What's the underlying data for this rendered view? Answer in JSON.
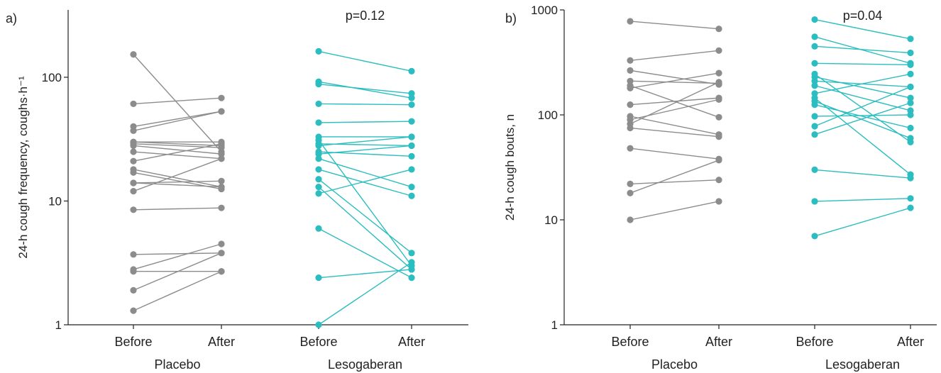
{
  "colors": {
    "placebo": "#8c8c8c",
    "lesogaberan": "#2bbdc0",
    "axis": "#222222"
  },
  "chart_data": [
    {
      "panel_label": "a)",
      "type": "line",
      "y_scale": "log",
      "ylabel": "24-h cough frequency, coughs·h⁻¹",
      "ylim": [
        1,
        350
      ],
      "yticks": [
        1,
        10,
        100
      ],
      "ytick_labels": [
        "1",
        "10",
        "100"
      ],
      "categories": [
        "Before",
        "After",
        "Before",
        "After"
      ],
      "groups": [
        {
          "name": "Placebo",
          "color": "placebo",
          "pairs": [
            [
              153,
              25
            ],
            [
              61,
              68
            ],
            [
              40,
              53
            ],
            [
              37,
              53
            ],
            [
              30,
              30
            ],
            [
              30,
              28
            ],
            [
              29,
              27
            ],
            [
              28,
              24
            ],
            [
              25,
              22
            ],
            [
              21,
              29
            ],
            [
              18,
              13
            ],
            [
              17,
              12.5
            ],
            [
              14,
              14.5
            ],
            [
              14,
              13
            ],
            [
              12,
              22
            ],
            [
              8.5,
              8.8
            ],
            [
              3.7,
              3.8
            ],
            [
              2.8,
              4.5
            ],
            [
              2.7,
              2.7
            ],
            [
              1.9,
              3.8
            ],
            [
              1.3,
              2.7
            ]
          ]
        },
        {
          "name": "Lesogaberan",
          "color": "lesogaberan",
          "pairs": [
            [
              162,
              112
            ],
            [
              92,
              68
            ],
            [
              88,
              74
            ],
            [
              61,
              60
            ],
            [
              43,
              44
            ],
            [
              33,
              33
            ],
            [
              31,
              3
            ],
            [
              29,
              28
            ],
            [
              28,
              33
            ],
            [
              25,
              23
            ],
            [
              24,
              28
            ],
            [
              22,
              13
            ],
            [
              18,
              11
            ],
            [
              15,
              3.8
            ],
            [
              13,
              2.8
            ],
            [
              11.5,
              18
            ],
            [
              6,
              2.4
            ],
            [
              2.4,
              2.8
            ],
            [
              1,
              3.2
            ]
          ]
        }
      ],
      "annotations": [
        {
          "text": "p=0.12",
          "group": 1
        }
      ]
    },
    {
      "panel_label": "b)",
      "type": "line",
      "y_scale": "log",
      "ylabel": "24-h cough bouts, n",
      "ylim": [
        1,
        1000
      ],
      "yticks": [
        1,
        10,
        100,
        1000
      ],
      "ytick_labels": [
        "1",
        "10",
        "100",
        "1000"
      ],
      "categories": [
        "Before",
        "After",
        "Before",
        "After"
      ],
      "groups": [
        {
          "name": "Placebo",
          "color": "placebo",
          "pairs": [
            [
              780,
              660
            ],
            [
              330,
              410
            ],
            [
              265,
              195
            ],
            [
              210,
              200
            ],
            [
              190,
              95
            ],
            [
              180,
              250
            ],
            [
              125,
              145
            ],
            [
              97,
              65
            ],
            [
              90,
              140
            ],
            [
              82,
              205
            ],
            [
              75,
              62
            ],
            [
              48,
              38
            ],
            [
              22,
              24
            ],
            [
              18,
              37
            ],
            [
              10,
              15
            ]
          ]
        },
        {
          "name": "Lesogaberan",
          "color": "lesogaberan",
          "pairs": [
            [
              810,
              530
            ],
            [
              555,
              310
            ],
            [
              450,
              390
            ],
            [
              310,
              300
            ],
            [
              245,
              55
            ],
            [
              230,
              145
            ],
            [
              210,
              185
            ],
            [
              190,
              110
            ],
            [
              160,
              245
            ],
            [
              145,
              27
            ],
            [
              135,
              60
            ],
            [
              125,
              75
            ],
            [
              97,
              100
            ],
            [
              78,
              185
            ],
            [
              65,
              130
            ],
            [
              30,
              25
            ],
            [
              15,
              16
            ],
            [
              7,
              13
            ]
          ]
        }
      ],
      "annotations": [
        {
          "text": "p=0.04",
          "group": 1
        }
      ]
    }
  ]
}
